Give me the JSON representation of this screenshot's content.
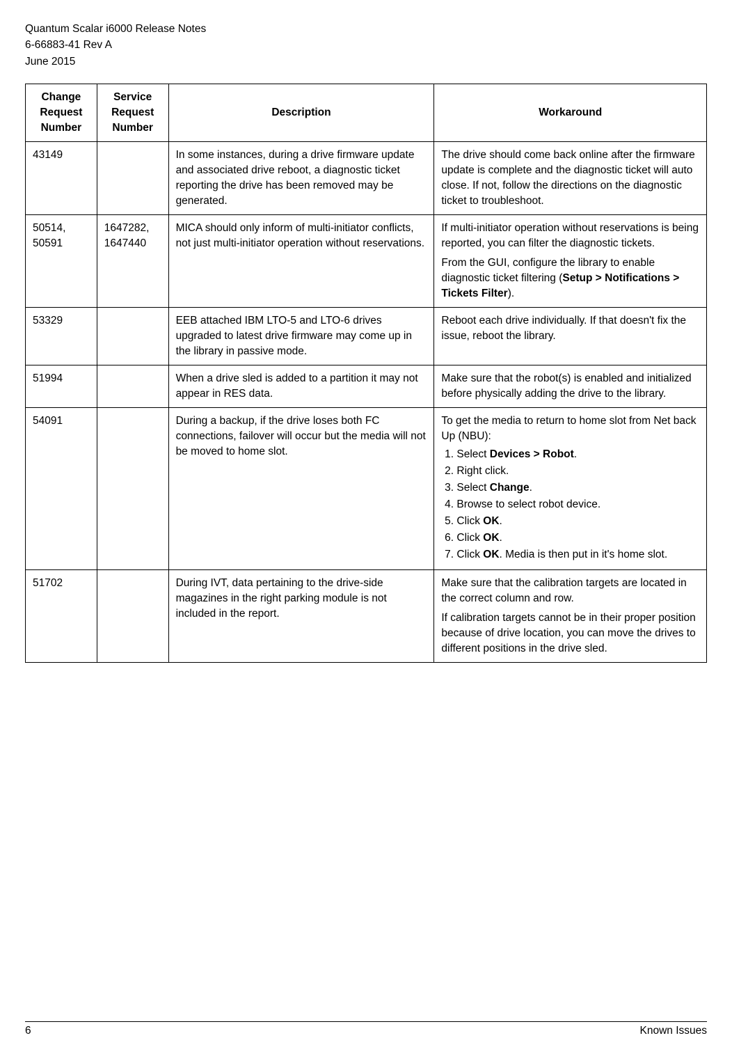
{
  "header": {
    "title": "Quantum Scalar i6000 Release Notes",
    "doc_id": "6-66883-41 Rev A",
    "date": "June 2015"
  },
  "table": {
    "headers": {
      "col1": "Change Request Number",
      "col2": "Service Request Number",
      "col3": "Description",
      "col4": "Workaround"
    },
    "rows": [
      {
        "cr": "43149",
        "sr": "",
        "desc": "In some instances, during a drive firmware update and associated drive reboot, a diagnostic ticket reporting the drive has been removed may be generated.",
        "wa_plain": "The drive should come back online after the firmware update is complete and the diagnostic ticket will auto close. If not, follow the directions on the diagnostic ticket to troubleshoot."
      },
      {
        "cr": "50514, 50591",
        "sr": "1647282, 1647440",
        "desc": "MICA should only inform of multi-initiator conflicts, not just multi-initiator operation without reservations.",
        "wa_p1": "If multi-initiator operation without reservations is being reported, you can filter the diagnostic tickets.",
        "wa_p2_pre": "From the GUI, configure the library to enable diagnostic ticket filtering (",
        "wa_p2_bold": "Setup > Notifications > Tickets Filter",
        "wa_p2_post": ")."
      },
      {
        "cr": "53329",
        "sr": "",
        "desc": "EEB attached IBM LTO-5 and LTO-6 drives upgraded to latest drive firmware may come up in the library in passive mode.",
        "wa_plain": "Reboot each drive individually. If that doesn't fix the issue, reboot the library."
      },
      {
        "cr": "51994",
        "sr": "",
        "desc": "When a drive sled is added to a partition it may not appear in RES data.",
        "wa_plain": "Make sure that the robot(s) is enabled and initialized before physically adding the drive to the library."
      },
      {
        "cr": "54091",
        "sr": "",
        "desc": "During a backup, if the drive loses both FC connections, failover will occur but the media will not be moved to home slot.",
        "wa_intro": "To get the media to return to home slot from Net back Up (NBU):",
        "steps": {
          "s1_pre": "Select ",
          "s1_bold": "Devices > Robot",
          "s1_post": ".",
          "s2": "Right click.",
          "s3_pre": "Select ",
          "s3_bold": "Change",
          "s3_post": ".",
          "s4": "Browse to select robot device.",
          "s5_pre": "Click ",
          "s5_bold": "OK",
          "s5_post": ".",
          "s6_pre": "Click ",
          "s6_bold": "OK",
          "s6_post": ".",
          "s7_pre": "Click ",
          "s7_bold": "OK",
          "s7_post": ". Media is then put in it's home slot."
        }
      },
      {
        "cr": "51702",
        "sr": "",
        "desc": "During IVT, data pertaining to the drive-side magazines in the right parking module is not included in the report.",
        "wa_p1": "Make sure that the calibration targets are located in the correct column and row.",
        "wa_p2": "If calibration targets cannot be in their proper position because of drive location, you can move the drives to different positions in the drive sled."
      }
    ]
  },
  "footer": {
    "page": "6",
    "section": "Known Issues"
  }
}
